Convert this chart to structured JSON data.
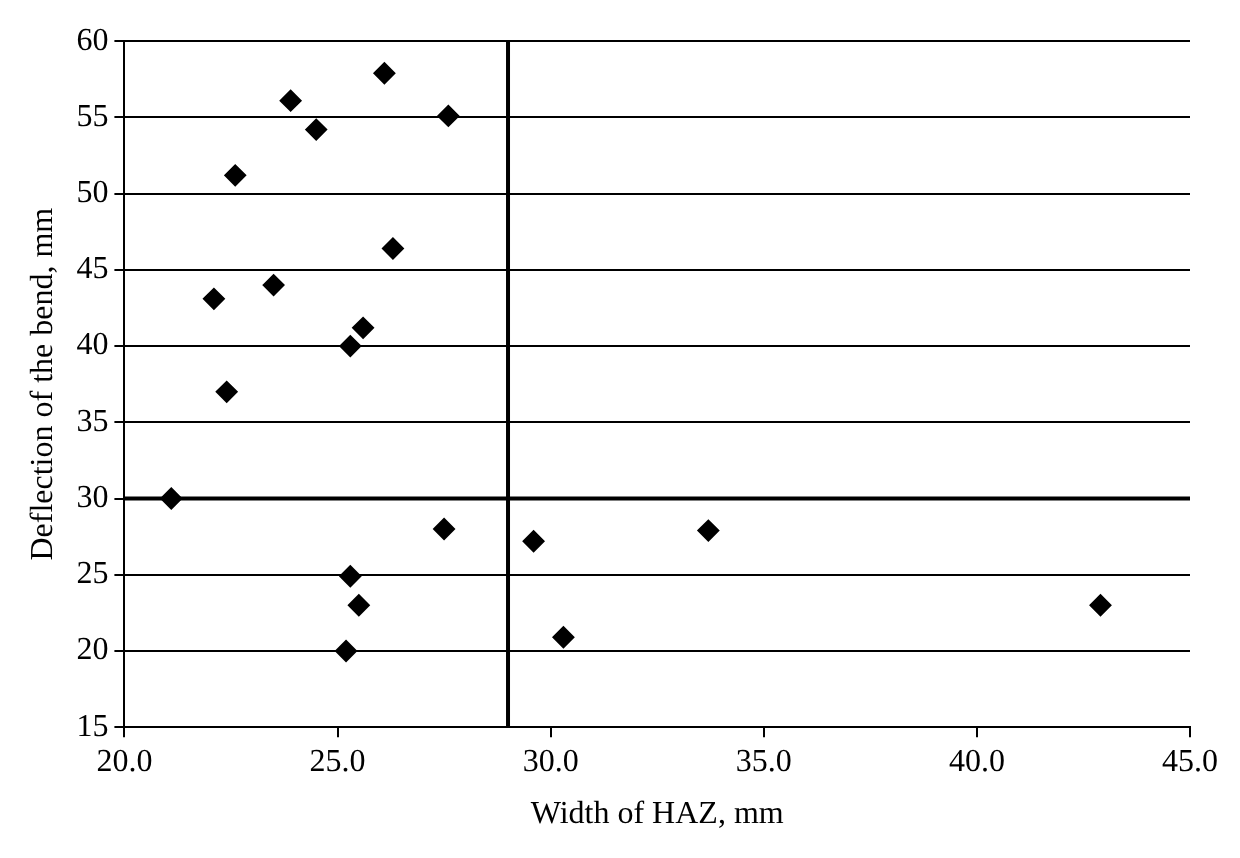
{
  "chart_data": {
    "type": "scatter",
    "xlabel": "Width of HAZ, mm",
    "ylabel": "Deflection of the bend, mm",
    "x": [
      21.1,
      22.1,
      22.4,
      22.6,
      23.5,
      23.9,
      24.5,
      25.3,
      25.6,
      26.1,
      26.3,
      27.6,
      27.5,
      25.3,
      25.5,
      25.2,
      29.6,
      30.3,
      33.7,
      42.9
    ],
    "series": [
      {
        "color": "#000000",
        "values": [
          30.0,
          43.1,
          37.0,
          51.2,
          44.0,
          56.1,
          54.2,
          40.0,
          41.2,
          57.9,
          46.4,
          55.1,
          28.0,
          24.9,
          23.0,
          20.0,
          27.2,
          20.9,
          27.9,
          23.0
        ]
      }
    ],
    "xlim": [
      20,
      45
    ],
    "xticks": [
      {
        "value": 20,
        "label": "20.0"
      },
      {
        "value": 25,
        "label": "25.0"
      },
      {
        "value": 30,
        "label": "30.0"
      },
      {
        "value": 35,
        "label": "35.0"
      },
      {
        "value": 40,
        "label": "40.0"
      },
      {
        "value": 45,
        "label": "45.0"
      }
    ],
    "ylim": [
      15,
      60
    ],
    "yticks": [
      15,
      20,
      25,
      30,
      35,
      40,
      45,
      50,
      55,
      60
    ],
    "grid": "y",
    "marker": "diamond",
    "legend": false,
    "ref_lines": [
      {
        "axis": "x",
        "value": 29
      },
      {
        "axis": "y",
        "value": 30
      }
    ]
  }
}
